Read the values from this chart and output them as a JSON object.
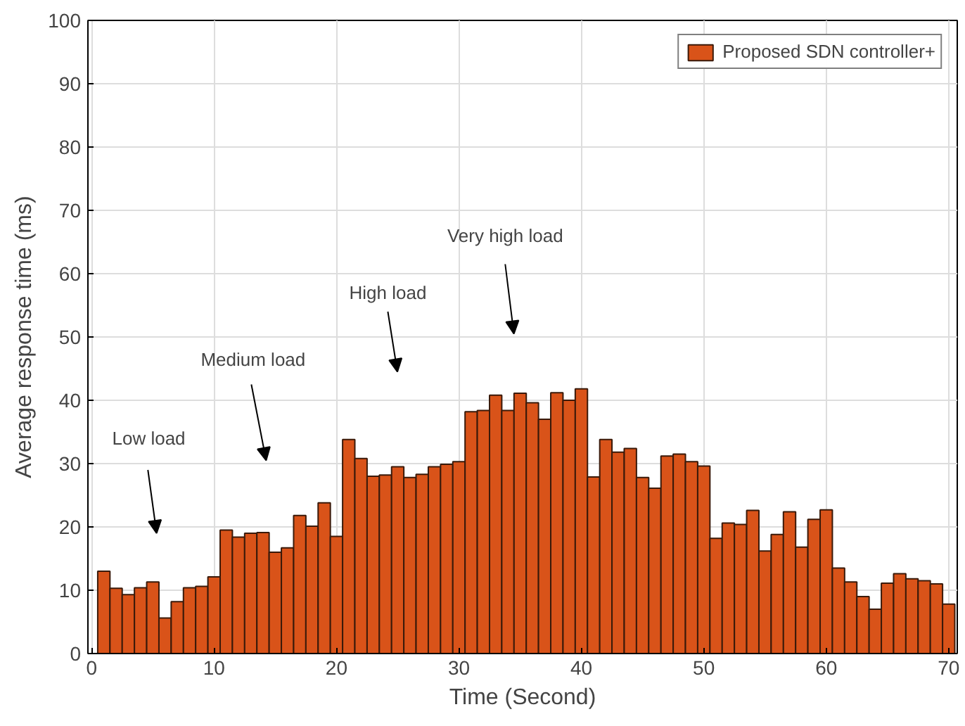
{
  "chart_data": {
    "type": "bar",
    "xlabel": "Time (Second)",
    "ylabel": "Average response time (ms)",
    "x": [
      1,
      2,
      3,
      4,
      5,
      6,
      7,
      8,
      9,
      10,
      11,
      12,
      13,
      14,
      15,
      16,
      17,
      18,
      19,
      20,
      21,
      22,
      23,
      24,
      25,
      26,
      27,
      28,
      29,
      30,
      31,
      32,
      33,
      34,
      35,
      36,
      37,
      38,
      39,
      40,
      41,
      42,
      43,
      44,
      45,
      46,
      47,
      48,
      49,
      50,
      51,
      52,
      53,
      54,
      55,
      56,
      57,
      58,
      59,
      60,
      61,
      62,
      63,
      64,
      65,
      66,
      67,
      68,
      69,
      70
    ],
    "series": [
      {
        "name": "Proposed SDN controller+",
        "color": "#d95319",
        "values": [
          13,
          10.3,
          9.3,
          10.4,
          11.3,
          5.6,
          8.2,
          10.4,
          10.6,
          12.1,
          19.5,
          18.4,
          19,
          19.1,
          16,
          16.7,
          21.8,
          20.1,
          23.8,
          18.5,
          33.8,
          30.8,
          28,
          28.2,
          29.5,
          27.8,
          28.3,
          29.5,
          29.9,
          30.3,
          38.2,
          38.4,
          40.8,
          38.4,
          41.1,
          39.6,
          37,
          41.2,
          40,
          41.8,
          27.9,
          33.8,
          31.8,
          32.4,
          27.8,
          26.1,
          31.2,
          31.5,
          30.3,
          29.6,
          18.2,
          20.6,
          20.4,
          22.6,
          16.2,
          18.8,
          22.4,
          16.8,
          21.2,
          22.7,
          13.5,
          11.3,
          9,
          7,
          11.1,
          12.6,
          11.8,
          11.5,
          11,
          7.8
        ]
      }
    ],
    "xlim": [
      -0.3,
      70.7
    ],
    "ylim": [
      0,
      100
    ],
    "xticks": [
      0,
      10,
      20,
      30,
      40,
      50,
      60,
      70
    ],
    "yticks": [
      0,
      10,
      20,
      30,
      40,
      50,
      60,
      70,
      80,
      90,
      100
    ],
    "grid": true,
    "legend": "top right",
    "annotations": [
      "Low load",
      "Medium load",
      "High load",
      "Very high load"
    ]
  }
}
